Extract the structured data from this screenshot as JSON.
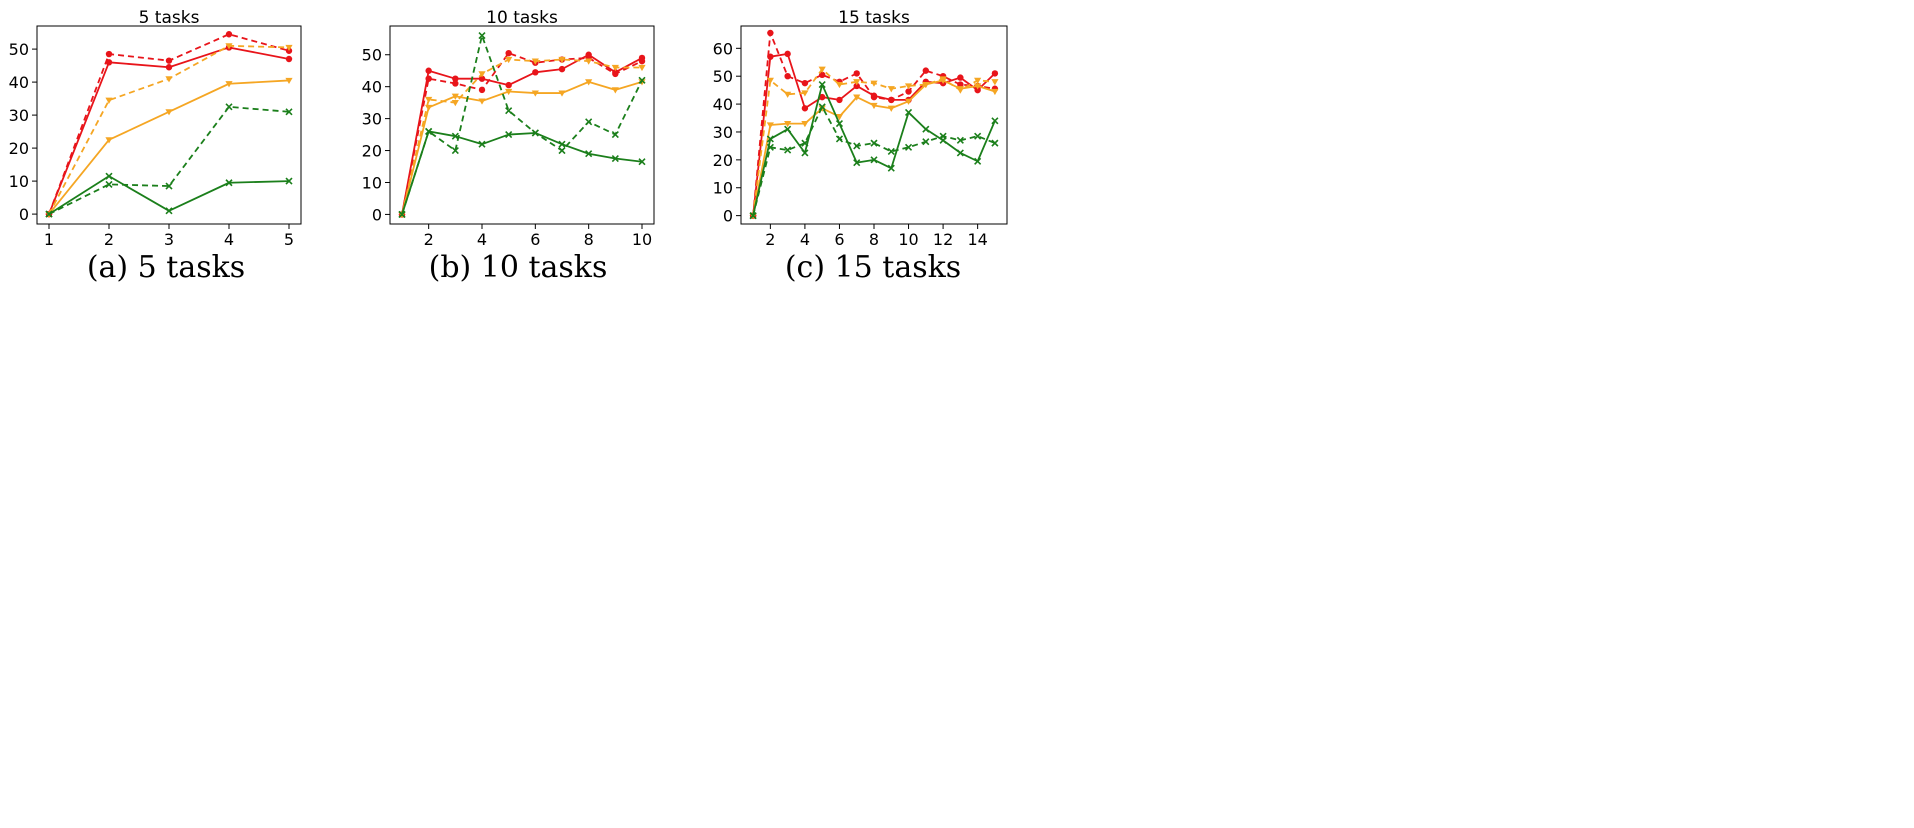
{
  "figure": {
    "captions": [
      "(a) 5 tasks",
      "(b) 10 tasks",
      "(c) 15 tasks"
    ]
  },
  "colors": {
    "red": "#e8141a",
    "orange": "#f5a623",
    "green": "#1b7f1b"
  },
  "chart_data": [
    {
      "type": "line",
      "title": "5 tasks",
      "xlabel": "",
      "ylabel": "",
      "x": [
        1,
        2,
        3,
        4,
        5
      ],
      "xlim": [
        0.8,
        5.2
      ],
      "ylim": [
        -3,
        57
      ],
      "xticks": [
        1,
        2,
        3,
        4,
        5
      ],
      "yticks": [
        0,
        10,
        20,
        30,
        40,
        50
      ],
      "grid": false,
      "series": [
        {
          "color": "red",
          "dash": true,
          "marker": "circle",
          "values": [
            0,
            48.5,
            46.5,
            54.5,
            49.5
          ]
        },
        {
          "color": "red",
          "dash": false,
          "marker": "circle",
          "values": [
            0,
            46,
            44.5,
            50.5,
            47
          ]
        },
        {
          "color": "orange",
          "dash": true,
          "marker": "triangle",
          "values": [
            0,
            34.5,
            41,
            51,
            50.5
          ]
        },
        {
          "color": "orange",
          "dash": false,
          "marker": "triangle",
          "values": [
            0,
            22.5,
            31,
            39.5,
            40.5
          ]
        },
        {
          "color": "green",
          "dash": true,
          "marker": "x",
          "values": [
            0,
            9,
            8.5,
            32.5,
            31
          ]
        },
        {
          "color": "green",
          "dash": false,
          "marker": "x",
          "values": [
            0,
            11.5,
            1,
            9.5,
            10
          ]
        }
      ]
    },
    {
      "type": "line",
      "title": "10 tasks",
      "xlabel": "",
      "ylabel": "",
      "x": [
        1,
        2,
        3,
        4,
        5,
        6,
        7,
        8,
        9,
        10
      ],
      "xlim": [
        0.55,
        10.45
      ],
      "ylim": [
        -3,
        59
      ],
      "xticks": [
        2,
        4,
        6,
        8,
        10
      ],
      "yticks": [
        0,
        10,
        20,
        30,
        40,
        50
      ],
      "grid": false,
      "series": [
        {
          "color": "red",
          "dash": true,
          "marker": "circle",
          "values": [
            0,
            42.5,
            41,
            39,
            50.5,
            47.5,
            48.5,
            49,
            44,
            48
          ]
        },
        {
          "color": "red",
          "dash": false,
          "marker": "circle",
          "values": [
            0,
            45,
            42.5,
            42.5,
            40.5,
            44.5,
            45.5,
            50,
            44.5,
            49
          ]
        },
        {
          "color": "orange",
          "dash": true,
          "marker": "triangle",
          "values": [
            0,
            36,
            35,
            44,
            48.5,
            48,
            48.5,
            48,
            46,
            46
          ]
        },
        {
          "color": "orange",
          "dash": false,
          "marker": "triangle",
          "values": [
            0,
            33.5,
            37,
            35.5,
            38.5,
            38,
            38,
            41.5,
            39,
            41.5
          ]
        },
        {
          "color": "green",
          "dash": true,
          "marker": "x",
          "values": [
            0,
            26,
            20,
            56,
            32.5,
            25.5,
            20,
            29,
            25,
            42
          ]
        },
        {
          "color": "green",
          "dash": false,
          "marker": "x",
          "values": [
            0,
            26,
            24.5,
            22,
            25,
            25.5,
            22,
            19,
            17.5,
            16.5
          ]
        }
      ]
    },
    {
      "type": "line",
      "title": "15 tasks",
      "xlabel": "",
      "ylabel": "",
      "x": [
        1,
        2,
        3,
        4,
        5,
        6,
        7,
        8,
        9,
        10,
        11,
        12,
        13,
        14,
        15
      ],
      "xlim": [
        0.3,
        15.7
      ],
      "ylim": [
        -3,
        68
      ],
      "xticks": [
        2,
        4,
        6,
        8,
        10,
        12,
        14
      ],
      "yticks": [
        0,
        10,
        20,
        30,
        40,
        50,
        60
      ],
      "grid": false,
      "series": [
        {
          "color": "red",
          "dash": true,
          "marker": "circle",
          "values": [
            0,
            65.5,
            50,
            47.5,
            50.5,
            48,
            51,
            42.5,
            41.5,
            44.5,
            52,
            50,
            47,
            46.5,
            45.5
          ]
        },
        {
          "color": "red",
          "dash": false,
          "marker": "circle",
          "values": [
            0,
            57,
            58,
            38.5,
            42.5,
            41.5,
            46.5,
            43,
            41.5,
            41.5,
            48,
            47.5,
            49.5,
            45,
            51
          ]
        },
        {
          "color": "orange",
          "dash": true,
          "marker": "triangle",
          "values": [
            0,
            48.5,
            43.5,
            44,
            52.5,
            47,
            48,
            47.5,
            45.5,
            46.5,
            47,
            49,
            45,
            48.5,
            48
          ]
        },
        {
          "color": "orange",
          "dash": false,
          "marker": "triangle",
          "values": [
            0,
            32.5,
            33,
            33,
            38.5,
            35.5,
            42.5,
            39.5,
            38.5,
            41,
            47,
            48.5,
            45.5,
            46.5,
            44.5
          ]
        },
        {
          "color": "green",
          "dash": true,
          "marker": "x",
          "values": [
            0,
            24.5,
            23.5,
            26,
            39,
            27.5,
            25,
            26,
            23,
            24.5,
            26.5,
            28.5,
            27,
            28.5,
            26
          ]
        },
        {
          "color": "green",
          "dash": false,
          "marker": "x",
          "values": [
            0,
            27.5,
            31,
            22.5,
            47,
            33,
            19,
            20,
            17,
            37,
            31,
            27,
            22.5,
            19.5,
            34
          ]
        }
      ]
    }
  ]
}
